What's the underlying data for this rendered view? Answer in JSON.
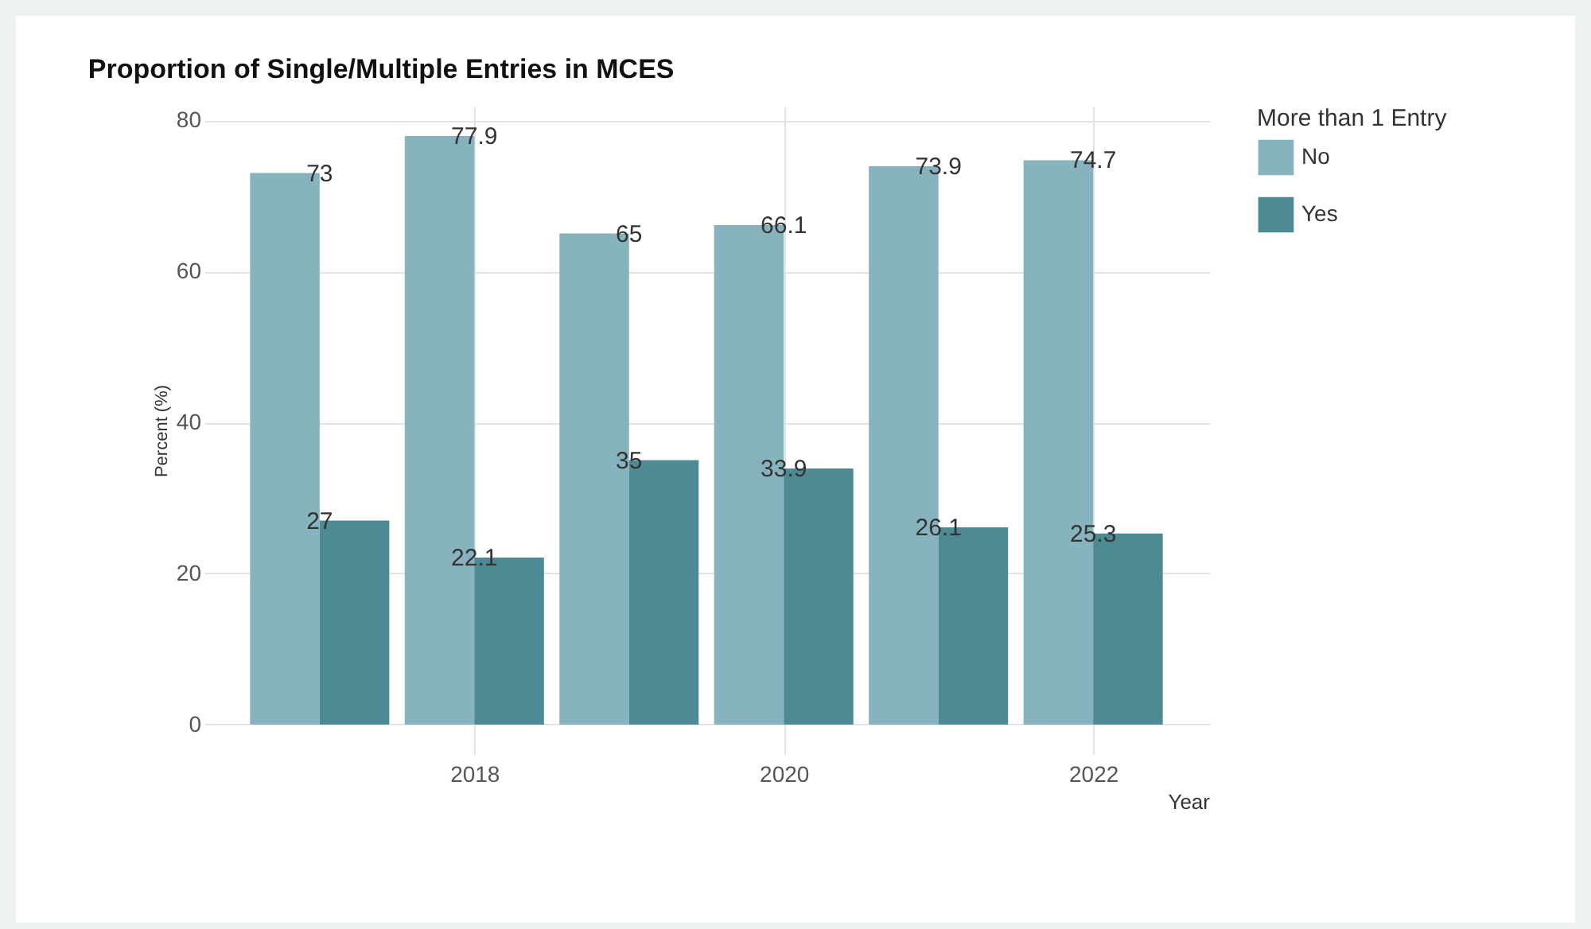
{
  "chart_data": {
    "type": "bar",
    "title": "Proportion of Single/Multiple Entries in MCES",
    "xlabel": "Year",
    "ylabel": "Percent (%)",
    "legend_title": "More than 1 Entry",
    "x": [
      2017,
      2018,
      2019,
      2020,
      2021,
      2022
    ],
    "series": [
      {
        "name": "No",
        "color": "#86b3bd",
        "values": [
          73,
          77.9,
          65,
          66.1,
          73.9,
          74.7
        ]
      },
      {
        "name": "Yes",
        "color": "#4e8a93",
        "values": [
          27,
          22.1,
          35,
          33.9,
          26.1,
          25.3
        ]
      }
    ],
    "xlim": [
      2016.25,
      2022.75
    ],
    "xticks": [
      2018,
      2020,
      2022
    ],
    "ylim": [
      -3.9,
      81.8
    ],
    "yticks": [
      0,
      20,
      40,
      60,
      80
    ],
    "grid": true,
    "legend": "right",
    "data_labels": true
  }
}
